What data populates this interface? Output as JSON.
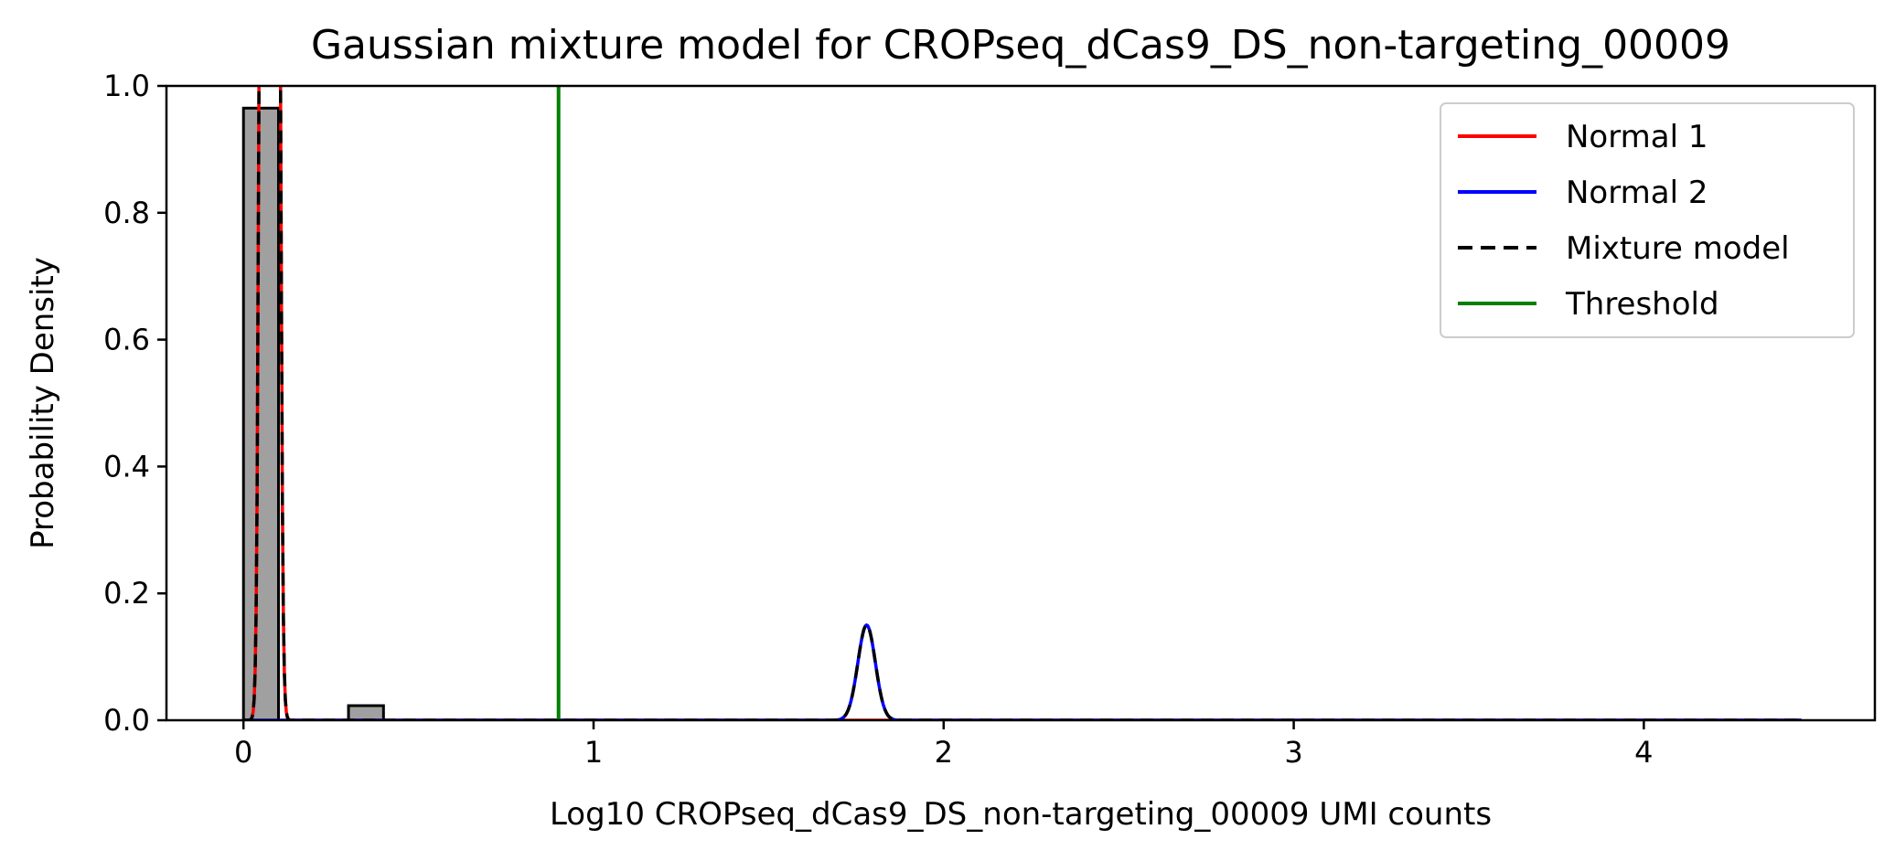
{
  "chart_data": {
    "type": "histogram",
    "title": "Gaussian mixture model for CROPseq_dCas9_DS_non-targeting_00009",
    "xlabel": "Log10 CROPseq_dCas9_DS_non-targeting_00009 UMI counts",
    "ylabel": "Probability Density",
    "xlim": [
      -0.22,
      4.66
    ],
    "ylim": [
      0.0,
      1.0
    ],
    "xticks": [
      0,
      1,
      2,
      3,
      4
    ],
    "yticks": [
      0.0,
      0.2,
      0.4,
      0.6,
      0.8,
      1.0
    ],
    "xtick_labels": [
      "0",
      "1",
      "2",
      "3",
      "4"
    ],
    "ytick_labels": [
      "0.0",
      "0.2",
      "0.4",
      "0.6",
      "0.8",
      "1.0"
    ],
    "histogram": {
      "bins": [
        {
          "x0": 0.0,
          "x1": 0.1,
          "height": 0.965
        },
        {
          "x0": 0.3,
          "x1": 0.4,
          "height": 0.023
        }
      ],
      "fill": "#a0a0a0",
      "edge": "#000000"
    },
    "series": [
      {
        "name": "Normal 1",
        "color": "#ff0000",
        "style": "solid",
        "mean": 0.075,
        "sd": 0.012,
        "weight": 0.97
      },
      {
        "name": "Normal 2",
        "color": "#0000ff",
        "style": "solid",
        "mean": 1.78,
        "sd": 0.025,
        "weight": 0.0094
      },
      {
        "name": "Mixture model",
        "color": "#000000",
        "style": "dashed"
      },
      {
        "name": "Threshold",
        "color": "#008000",
        "style": "solid",
        "x": 0.9
      }
    ],
    "curve_range": [
      0.0,
      4.45
    ],
    "legend_position": "top-right"
  }
}
